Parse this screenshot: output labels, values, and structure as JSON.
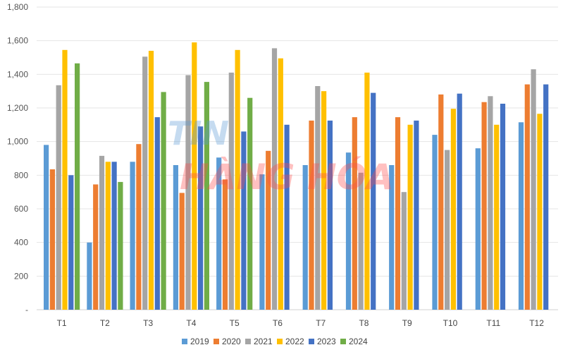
{
  "chart_data": {
    "type": "bar",
    "categories": [
      "T1",
      "T2",
      "T3",
      "T4",
      "T5",
      "T6",
      "T7",
      "T8",
      "T9",
      "T10",
      "T11",
      "T12"
    ],
    "series": [
      {
        "name": "2019",
        "color": "#5b9bd5",
        "values": [
          980,
          400,
          880,
          860,
          905,
          805,
          860,
          935,
          860,
          1040,
          960,
          1115
        ]
      },
      {
        "name": "2020",
        "color": "#ed7d31",
        "values": [
          835,
          745,
          985,
          695,
          775,
          945,
          1125,
          1145,
          1145,
          1280,
          1235,
          1340
        ]
      },
      {
        "name": "2021",
        "color": "#a5a5a5",
        "values": [
          1335,
          915,
          1505,
          1395,
          1410,
          1555,
          1330,
          815,
          700,
          950,
          1270,
          1430
        ]
      },
      {
        "name": "2022",
        "color": "#ffc000",
        "values": [
          1545,
          880,
          1540,
          1590,
          1545,
          1495,
          1300,
          1410,
          1100,
          1195,
          1100,
          1165
        ]
      },
      {
        "name": "2023",
        "color": "#4472c4",
        "values": [
          800,
          880,
          1145,
          1090,
          1060,
          1100,
          1125,
          1290,
          1125,
          1285,
          1225,
          1340
        ]
      },
      {
        "name": "2024",
        "color": "#70ad47",
        "values": [
          1465,
          760,
          1295,
          1355,
          1260,
          null,
          null,
          null,
          null,
          null,
          null,
          null
        ]
      }
    ],
    "yticks": [
      "-",
      "200",
      "400",
      "600",
      "800",
      "1,000",
      "1,200",
      "1,400",
      "1,600",
      "1,800"
    ],
    "ylim": [
      0,
      1800
    ],
    "grid": true,
    "legend_position": "bottom"
  },
  "watermark": {
    "line1": "TIN",
    "line2": "HÀNG HÓA"
  }
}
